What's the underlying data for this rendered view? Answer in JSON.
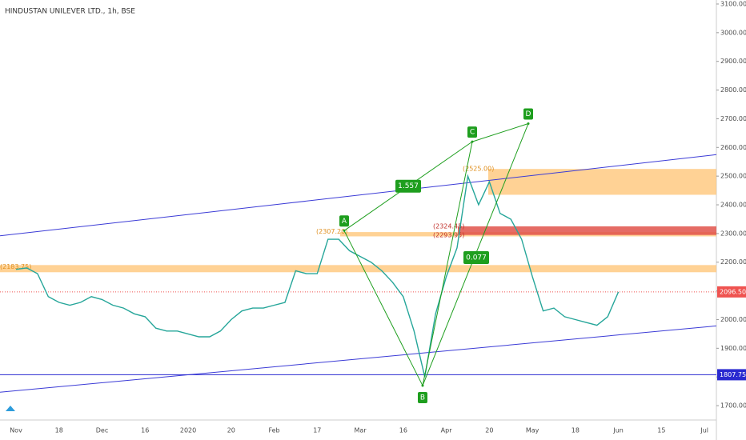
{
  "chart_data": {
    "type": "line",
    "title": "HINDUSTAN UNILEVER LTD., 1h, BSE",
    "categories": [
      "Nov",
      null,
      null,
      null,
      "18",
      null,
      null,
      null,
      "Dec",
      null,
      null,
      null,
      "16",
      null,
      null,
      null,
      "2020",
      null,
      null,
      null,
      "20",
      null,
      null,
      null,
      "Feb",
      null,
      null,
      null,
      "17",
      null,
      null,
      null,
      "Mar",
      null,
      null,
      null,
      "16",
      null,
      null,
      null,
      "Apr",
      null,
      null,
      null,
      "20",
      null,
      null,
      null,
      "May",
      null,
      null,
      null,
      "18",
      null,
      null,
      null,
      "Jun",
      null,
      null,
      null,
      "15",
      null,
      null,
      null,
      "Jul"
    ],
    "series": [
      {
        "name": "HINDUSTAN UNILEVER LTD.",
        "color": "#26a69a",
        "values": [
          2175,
          2180,
          2160,
          2080,
          2060,
          2050,
          2060,
          2080,
          2070,
          2050,
          2040,
          2020,
          2010,
          1970,
          1960,
          1960,
          1950,
          1940,
          1940,
          1960,
          2000,
          2030,
          2040,
          2040,
          2050,
          2060,
          2170,
          2160,
          2160,
          2280,
          2280,
          2240,
          2220,
          2200,
          2170,
          2130,
          2080,
          1960,
          1800,
          2020,
          2150,
          2250,
          2500,
          2400,
          2480,
          2370,
          2350,
          2280,
          2150,
          2030,
          2040,
          2010,
          2000,
          1990,
          1980,
          2010,
          2096.5,
          null,
          null,
          null,
          null,
          null,
          null,
          null,
          null
        ]
      }
    ],
    "ylim": [
      1660,
      3110
    ],
    "yticks": [
      {
        "value": 1700,
        "label": "1700.00"
      },
      {
        "value": 1800,
        "label": "1800.00"
      },
      {
        "value": 1900,
        "label": "1900.00"
      },
      {
        "value": 2000,
        "label": "2000.00"
      },
      {
        "value": 2100,
        "label": "2100.00"
      },
      {
        "value": 2200,
        "label": "2200.00"
      },
      {
        "value": 2300,
        "label": "2300.00"
      },
      {
        "value": 2400,
        "label": "2400.00"
      },
      {
        "value": 2500,
        "label": "2500.00"
      },
      {
        "value": 2600,
        "label": "2600.00"
      },
      {
        "value": 2700,
        "label": "2700.00"
      },
      {
        "value": 2800,
        "label": "2800.00"
      },
      {
        "value": 2900,
        "label": "2900.00"
      },
      {
        "value": 3000,
        "label": "3000.00"
      },
      {
        "value": 3100,
        "label": "3100.00"
      }
    ],
    "last_price": {
      "value": 2096.5,
      "label": "2096.50",
      "color": "#ef5350"
    },
    "level": {
      "value": 1807.75,
      "color": "#2a2ad0"
    },
    "trendlines": [
      {
        "from": 2292,
        "to": 2575,
        "color": "#3b3bd6"
      },
      {
        "from": 1747,
        "to": 1978,
        "color": "#3b3bd6"
      }
    ],
    "zones": [
      {
        "low": 2165,
        "high": 2190,
        "color": "#ffc77a"
      },
      {
        "low": 2290,
        "high": 2305,
        "color": "#ffc77a"
      },
      {
        "low": 2295,
        "high": 2325,
        "color": "#e0524a"
      },
      {
        "low": 2435,
        "high": 2525,
        "color": "#ffc77a"
      }
    ],
    "zone_labels": [
      {
        "value": 2183.75,
        "label": "(2183.75)",
        "color": "#e09020"
      },
      {
        "value": 2307.2,
        "label": "(2307.20)",
        "color": "#e09020"
      },
      {
        "value": 2324.45,
        "label": "(2324.45)",
        "color": "#c0302a"
      },
      {
        "value": 2293.95,
        "label": "(2293.95)",
        "color": "#c0302a"
      },
      {
        "value": 2525,
        "label": "(2525.00)",
        "color": "#e09020"
      }
    ],
    "pattern": {
      "color": "#1e9e1e",
      "points": [
        {
          "label": "A",
          "value": 2310
        },
        {
          "label": "B",
          "value": 1770
        },
        {
          "label": "C",
          "value": 2620
        },
        {
          "label": "D",
          "value": 2683
        }
      ],
      "ratios": [
        "1.557",
        "0.077"
      ]
    }
  }
}
